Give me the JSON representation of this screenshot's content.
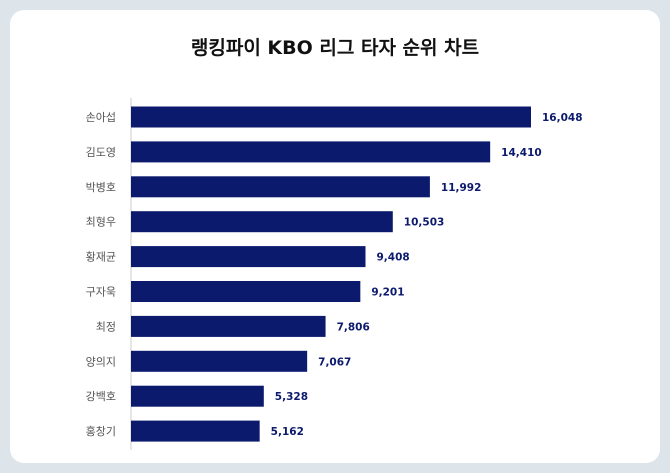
{
  "title": "랭킹파이 KBO 리그 타자 순위 차트",
  "colors": {
    "bar": "#0c1a6e",
    "label": "#0c1a6e",
    "category": "#555555",
    "axis": "#cccccc"
  },
  "chart_data": {
    "type": "bar",
    "orientation": "horizontal",
    "title": "랭킹파이 KBO 리그 타자 순위 차트",
    "categories": [
      "손아섭",
      "김도영",
      "박병호",
      "최형우",
      "황재균",
      "구자욱",
      "최정",
      "양의지",
      "강백호",
      "홍창기"
    ],
    "values": [
      16048,
      14410,
      11992,
      10503,
      9408,
      9201,
      7806,
      7067,
      5328,
      5162
    ],
    "value_labels": [
      "16,048",
      "14,410",
      "11,992",
      "10,503",
      "9,408",
      "9,201",
      "7,806",
      "7,067",
      "5,328",
      "5,162"
    ],
    "xlim": [
      0,
      16048
    ],
    "grid": false,
    "legend": "none"
  }
}
